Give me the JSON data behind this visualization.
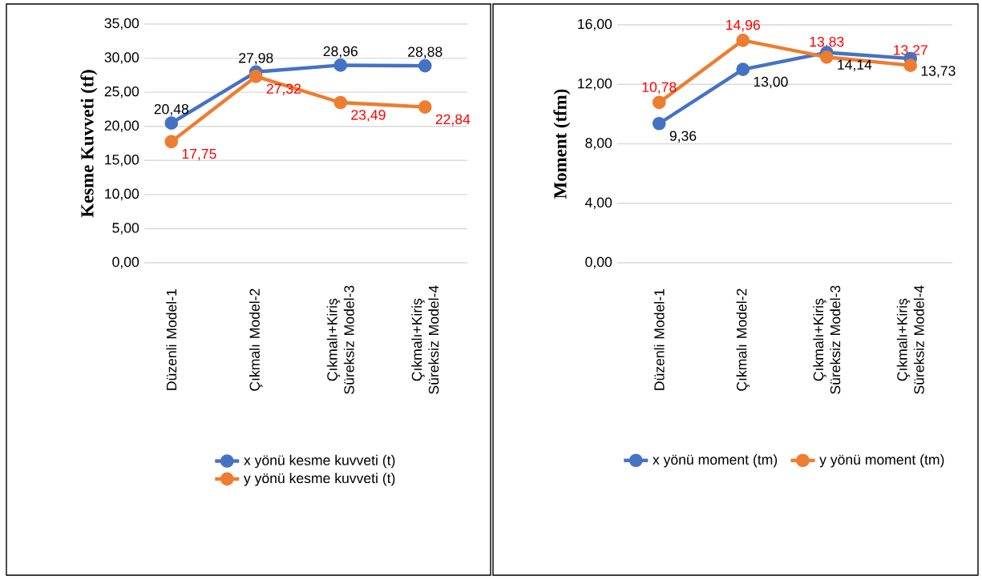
{
  "chart_data": [
    {
      "type": "line",
      "ylabel": "Kesme Kuvveti (tf)",
      "categories": [
        "Düzenli Model-1",
        "Çıkmalı Model-2",
        "Çıkmalı+Kiriş Süreksiz Model-3",
        "Çıkmalı+Kiriş Süreksiz Model-4"
      ],
      "series": [
        {
          "name": "x yönü kesme kuvveti (t)",
          "color": "#4472c4",
          "values": [
            20.48,
            27.98,
            28.96,
            28.88
          ],
          "value_labels": [
            "20,48",
            "27,98",
            "28,96",
            "28,88"
          ]
        },
        {
          "name": "y yönü kesme kuvveti (t)",
          "color": "#ed7d31",
          "values": [
            17.75,
            27.32,
            23.49,
            22.84
          ],
          "value_labels": [
            "17,75",
            "27,32",
            "23,49",
            "22,84"
          ]
        }
      ],
      "ylim": [
        0,
        35
      ],
      "yticks": [
        {
          "value": 0,
          "label": "0,00"
        },
        {
          "value": 5,
          "label": "5,00"
        },
        {
          "value": 10,
          "label": "10,00"
        },
        {
          "value": 15,
          "label": "15,00"
        },
        {
          "value": 20,
          "label": "20,00"
        },
        {
          "value": 25,
          "label": "25,00"
        },
        {
          "value": 30,
          "label": "30,00"
        },
        {
          "value": 35,
          "label": "35,00"
        }
      ],
      "grid": "y",
      "legend": "bottom",
      "marker": "circle",
      "line_style": "solid"
    },
    {
      "type": "line",
      "ylabel": "Moment (tfm)",
      "categories": [
        "Düzenli Model-1",
        "Çıkmalı Model-2",
        "Çıkmalı+Kiriş Süreksiz Model-3",
        "Çıkmalı+Kiriş Süreksiz Model-4"
      ],
      "series": [
        {
          "name": "x yönü moment (tm)",
          "color": "#4472c4",
          "values": [
            9.36,
            13.0,
            14.14,
            13.73
          ],
          "value_labels": [
            "9,36",
            "13,00",
            "14,14",
            "13,73"
          ]
        },
        {
          "name": "y yönü moment (tm)",
          "color": "#ed7d31",
          "values": [
            10.78,
            14.96,
            13.83,
            13.27
          ],
          "value_labels": [
            "10,78",
            "14,96",
            "13,83",
            "13,27"
          ]
        }
      ],
      "ylim": [
        0,
        16
      ],
      "yticks": [
        {
          "value": 0,
          "label": "0,00"
        },
        {
          "value": 4,
          "label": "4,00"
        },
        {
          "value": 8,
          "label": "8,00"
        },
        {
          "value": 12,
          "label": "12,00"
        },
        {
          "value": 16,
          "label": "16,00"
        }
      ],
      "grid": "y",
      "legend": "bottom",
      "marker": "circle",
      "line_style": "solid"
    }
  ]
}
